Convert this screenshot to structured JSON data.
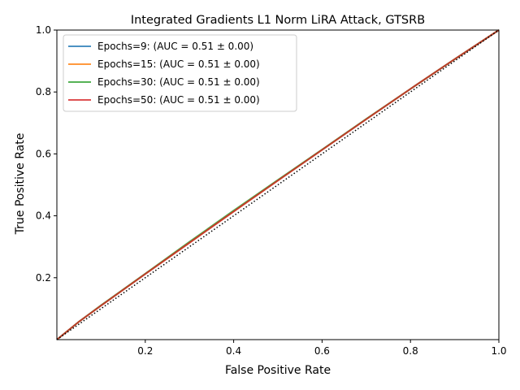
{
  "chart_data": {
    "type": "line",
    "title": "Integrated Gradients L1 Norm LiRA Attack, GTSRB",
    "xlabel": "False Positive Rate",
    "ylabel": "True Positive Rate",
    "xlim": [
      0.0,
      1.0
    ],
    "ylim": [
      0.0,
      1.0
    ],
    "x_ticks": [
      0.2,
      0.4,
      0.6,
      0.8,
      1.0
    ],
    "x_tick_labels": [
      "0.2",
      "0.4",
      "0.6",
      "0.8",
      "1.0"
    ],
    "y_ticks": [
      0.2,
      0.4,
      0.6,
      0.8,
      1.0
    ],
    "y_tick_labels": [
      "0.2",
      "0.4",
      "0.6",
      "0.8",
      "1.0"
    ],
    "grid": false,
    "legend_position": "top-left",
    "reference_line": {
      "style": "dotted",
      "color": "#000000",
      "x": [
        0,
        1
      ],
      "y": [
        0,
        1
      ]
    },
    "series": [
      {
        "name": "Epochs=9: (AUC = 0.51 ± 0.00)",
        "color": "#1f77b4",
        "x": [
          0,
          0.05,
          0.1,
          0.2,
          0.3,
          0.4,
          0.5,
          0.6,
          0.7,
          0.8,
          0.9,
          1.0
        ],
        "y": [
          0,
          0.058,
          0.11,
          0.212,
          0.313,
          0.414,
          0.514,
          0.613,
          0.712,
          0.81,
          0.906,
          1.0
        ]
      },
      {
        "name": "Epochs=15: (AUC = 0.51 ± 0.00)",
        "color": "#ff7f0e",
        "x": [
          0,
          0.05,
          0.1,
          0.2,
          0.3,
          0.4,
          0.5,
          0.6,
          0.7,
          0.8,
          0.9,
          1.0
        ],
        "y": [
          0,
          0.058,
          0.11,
          0.212,
          0.313,
          0.414,
          0.514,
          0.613,
          0.712,
          0.81,
          0.906,
          1.0
        ]
      },
      {
        "name": "Epochs=30: (AUC = 0.51 ± 0.00)",
        "color": "#2ca02c",
        "x": [
          0,
          0.05,
          0.1,
          0.2,
          0.3,
          0.4,
          0.5,
          0.6,
          0.7,
          0.8,
          0.9,
          1.0
        ],
        "y": [
          0,
          0.058,
          0.111,
          0.213,
          0.316,
          0.417,
          0.516,
          0.614,
          0.713,
          0.81,
          0.906,
          1.0
        ]
      },
      {
        "name": "Epochs=50: (AUC = 0.51 ± 0.00)",
        "color": "#d62728",
        "x": [
          0,
          0.05,
          0.1,
          0.2,
          0.3,
          0.4,
          0.5,
          0.6,
          0.7,
          0.8,
          0.9,
          1.0
        ],
        "y": [
          0,
          0.058,
          0.11,
          0.212,
          0.313,
          0.414,
          0.514,
          0.613,
          0.712,
          0.81,
          0.906,
          1.0
        ]
      }
    ]
  }
}
